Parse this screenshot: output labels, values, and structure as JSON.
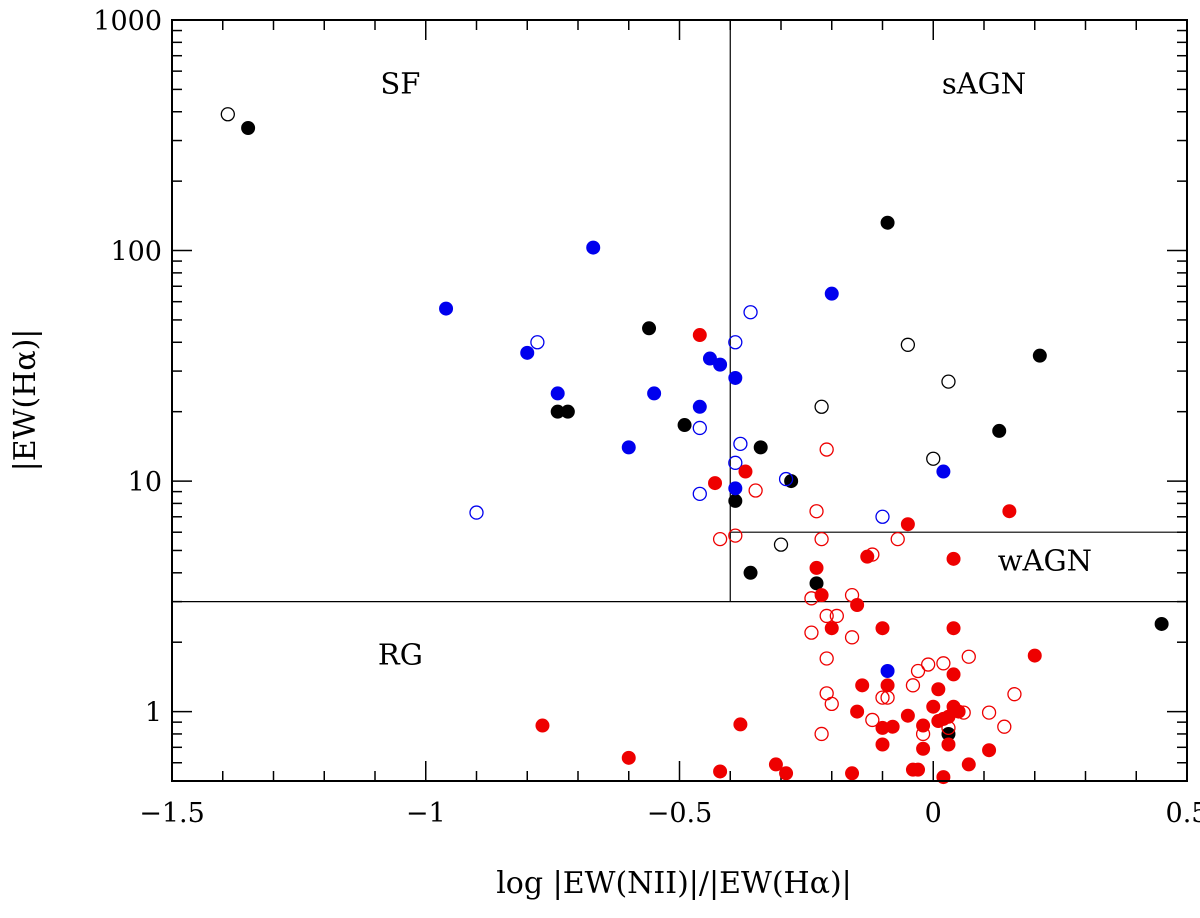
{
  "chart_data": {
    "type": "scatter",
    "title": "",
    "xlabel": "log |EW(NII)|/|EW(Hα)|",
    "ylabel": "|EW(Hα)|",
    "xlim": [
      -1.5,
      0.5
    ],
    "ylim": [
      0.5,
      1000
    ],
    "y_scale": "log",
    "x_ticks": [
      {
        "value": -1.5,
        "label": "−1.5"
      },
      {
        "value": -1,
        "label": "−1"
      },
      {
        "value": -0.5,
        "label": "−0.5"
      },
      {
        "value": 0,
        "label": "0"
      },
      {
        "value": 0.5,
        "label": "0.5"
      }
    ],
    "y_ticks": [
      {
        "value": 1,
        "label": "1"
      },
      {
        "value": 10,
        "label": "10"
      },
      {
        "value": 100,
        "label": "100"
      },
      {
        "value": 1000,
        "label": "1000"
      }
    ],
    "regions": [
      {
        "name": "SF",
        "x": -1.05,
        "y": 480
      },
      {
        "name": "sAGN",
        "x": 0.1,
        "y": 480
      },
      {
        "name": "wAGN",
        "x": 0.22,
        "y": 4.1
      },
      {
        "name": "RG",
        "x": -1.05,
        "y": 1.6
      }
    ],
    "dividers": [
      {
        "x1": -0.4,
        "y1": 3,
        "x2": -0.4,
        "y2": 1000
      },
      {
        "x1": -1.5,
        "y1": 3,
        "x2": 0.5,
        "y2": 3
      },
      {
        "x1": -0.4,
        "y1": 6,
        "x2": 0.5,
        "y2": 6
      }
    ],
    "colors": {
      "black": "#000000",
      "blue": "#0000ee",
      "red": "#ee0000"
    },
    "series": [
      {
        "color": "black",
        "filled": true,
        "points": [
          [
            -1.35,
            340
          ],
          [
            -0.09,
            132
          ],
          [
            0.21,
            35
          ],
          [
            -0.56,
            46
          ],
          [
            -0.74,
            20
          ],
          [
            -0.72,
            20
          ],
          [
            -0.49,
            17.5
          ],
          [
            -0.34,
            14
          ],
          [
            -0.28,
            10
          ],
          [
            -0.39,
            8.2
          ],
          [
            0.13,
            16.5
          ],
          [
            -0.36,
            4
          ],
          [
            -0.23,
            3.6
          ],
          [
            0.45,
            2.4
          ],
          [
            0.03,
            0.8
          ]
        ]
      },
      {
        "color": "black",
        "filled": false,
        "points": [
          [
            -1.39,
            390
          ],
          [
            -0.05,
            39
          ],
          [
            0.03,
            27
          ],
          [
            -0.22,
            21
          ],
          [
            0,
            12.5
          ],
          [
            -0.3,
            5.3
          ]
        ]
      },
      {
        "color": "blue",
        "filled": true,
        "points": [
          [
            -0.67,
            103
          ],
          [
            -0.96,
            56
          ],
          [
            -0.2,
            65
          ],
          [
            -0.8,
            36
          ],
          [
            -0.74,
            24
          ],
          [
            -0.55,
            24
          ],
          [
            -0.42,
            32
          ],
          [
            -0.44,
            34
          ],
          [
            -0.39,
            28
          ],
          [
            -0.6,
            14
          ],
          [
            -0.46,
            21
          ],
          [
            -0.39,
            9.3
          ],
          [
            0.02,
            11
          ],
          [
            -0.09,
            1.5
          ]
        ]
      },
      {
        "color": "blue",
        "filled": false,
        "points": [
          [
            -0.36,
            54
          ],
          [
            -0.78,
            40
          ],
          [
            -0.39,
            40
          ],
          [
            -0.9,
            7.3
          ],
          [
            -0.46,
            17
          ],
          [
            -0.38,
            14.5
          ],
          [
            -0.39,
            12
          ],
          [
            -0.46,
            8.8
          ],
          [
            -0.29,
            10.2
          ],
          [
            -0.1,
            7
          ]
        ]
      },
      {
        "color": "red",
        "filled": true,
        "points": [
          [
            -0.46,
            43
          ],
          [
            -0.37,
            11
          ],
          [
            -0.43,
            9.8
          ],
          [
            0.15,
            7.4
          ],
          [
            -0.05,
            6.5
          ],
          [
            -0.13,
            4.7
          ],
          [
            0.04,
            4.6
          ],
          [
            -0.22,
            3.2
          ],
          [
            -0.15,
            2.9
          ],
          [
            -0.23,
            4.2
          ],
          [
            -0.2,
            2.3
          ],
          [
            -0.1,
            2.3
          ],
          [
            0.04,
            2.3
          ],
          [
            0.2,
            1.75
          ],
          [
            -0.14,
            1.3
          ],
          [
            -0.09,
            1.3
          ],
          [
            0.01,
            1.25
          ],
          [
            0.04,
            1.45
          ],
          [
            -0.77,
            0.87
          ],
          [
            -0.38,
            0.88
          ],
          [
            -0.6,
            0.63
          ],
          [
            -0.42,
            0.55
          ],
          [
            -0.31,
            0.59
          ],
          [
            -0.29,
            0.54
          ],
          [
            -0.16,
            0.54
          ],
          [
            -0.15,
            1
          ],
          [
            -0.1,
            0.85
          ],
          [
            -0.08,
            0.86
          ],
          [
            -0.05,
            0.96
          ],
          [
            -0.03,
            0.56
          ],
          [
            -0.04,
            0.56
          ],
          [
            -0.02,
            0.87
          ],
          [
            0,
            1.05
          ],
          [
            0.01,
            0.91
          ],
          [
            0.02,
            0.93
          ],
          [
            0.03,
            0.95
          ],
          [
            0.04,
            1.05
          ],
          [
            0.05,
            1
          ],
          [
            -0.1,
            0.72
          ],
          [
            -0.02,
            0.69
          ],
          [
            0.03,
            0.72
          ],
          [
            0.07,
            0.59
          ],
          [
            0.11,
            0.68
          ],
          [
            0.02,
            0.52
          ]
        ]
      },
      {
        "color": "red",
        "filled": false,
        "points": [
          [
            -0.21,
            13.7
          ],
          [
            -0.35,
            9.1
          ],
          [
            -0.23,
            7.4
          ],
          [
            -0.42,
            5.6
          ],
          [
            -0.39,
            5.8
          ],
          [
            -0.22,
            5.6
          ],
          [
            -0.07,
            5.6
          ],
          [
            -0.12,
            4.8
          ],
          [
            -0.16,
            3.2
          ],
          [
            -0.24,
            3.1
          ],
          [
            -0.21,
            2.6
          ],
          [
            -0.19,
            2.6
          ],
          [
            -0.24,
            2.2
          ],
          [
            -0.16,
            2.1
          ],
          [
            -0.21,
            1.7
          ],
          [
            -0.03,
            1.5
          ],
          [
            -0.01,
            1.6
          ],
          [
            0.02,
            1.62
          ],
          [
            0.07,
            1.73
          ],
          [
            -0.04,
            1.3
          ],
          [
            -0.09,
            1.15
          ],
          [
            -0.21,
            1.2
          ],
          [
            -0.2,
            1.08
          ],
          [
            -0.12,
            0.92
          ],
          [
            -0.22,
            0.8
          ],
          [
            0.06,
            0.99
          ],
          [
            0.11,
            0.99
          ],
          [
            0.16,
            1.19
          ],
          [
            0.14,
            0.86
          ],
          [
            -0.02,
            0.8
          ],
          [
            0.03,
            0.85
          ],
          [
            -0.1,
            1.15
          ]
        ]
      }
    ]
  }
}
